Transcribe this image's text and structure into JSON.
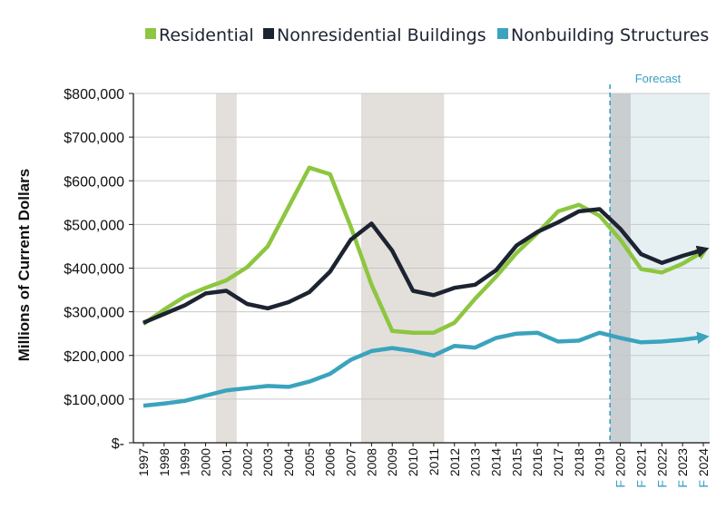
{
  "chart_data": {
    "type": "line",
    "title": "",
    "xlabel": "",
    "ylabel": "Millions of Current Dollars",
    "ylim": [
      0,
      800000
    ],
    "y_ticks": [
      "$-",
      "$100,000",
      "$200,000",
      "$300,000",
      "$400,000",
      "$500,000",
      "$600,000",
      "$700,000",
      "$800,000"
    ],
    "y_tick_values": [
      0,
      100000,
      200000,
      300000,
      400000,
      500000,
      600000,
      700000,
      800000
    ],
    "categories": [
      "1997",
      "1998",
      "1999",
      "2000",
      "2001",
      "2002",
      "2003",
      "2004",
      "2005",
      "2006",
      "2007",
      "2008",
      "2009",
      "2010",
      "2011",
      "2012",
      "2013",
      "2014",
      "2015",
      "2016",
      "2017",
      "2018",
      "2019",
      "2020",
      "2021",
      "2022",
      "2023",
      "2024"
    ],
    "forecast_suffix": "F",
    "forecast_start": "2020",
    "forecast_label": "Forecast",
    "recession_shading": [
      [
        "2001",
        "2001"
      ],
      [
        "2008",
        "2011"
      ]
    ],
    "legend_position": "top",
    "series": [
      {
        "name": "Residential",
        "color": "#8dc63f",
        "values": [
          272000,
          305000,
          335000,
          355000,
          372000,
          402000,
          450000,
          540000,
          630000,
          615000,
          495000,
          362000,
          256000,
          252000,
          252000,
          275000,
          330000,
          380000,
          435000,
          480000,
          530000,
          545000,
          520000,
          465000,
          398000,
          390000,
          410000,
          438000
        ]
      },
      {
        "name": "Nonresidential Buildings",
        "color": "#1c2331",
        "values": [
          275000,
          295000,
          315000,
          342000,
          348000,
          318000,
          308000,
          322000,
          345000,
          392000,
          465000,
          502000,
          440000,
          348000,
          338000,
          355000,
          362000,
          395000,
          452000,
          483000,
          505000,
          530000,
          535000,
          490000,
          432000,
          412000,
          428000,
          442000
        ]
      },
      {
        "name": "Nonbuilding Structures",
        "color": "#3ba3bd",
        "values": [
          85000,
          90000,
          96000,
          108000,
          120000,
          125000,
          130000,
          128000,
          140000,
          158000,
          190000,
          210000,
          217000,
          210000,
          200000,
          222000,
          218000,
          240000,
          250000,
          252000,
          232000,
          234000,
          252000,
          240000,
          230000,
          232000,
          236000,
          242000
        ]
      }
    ]
  }
}
